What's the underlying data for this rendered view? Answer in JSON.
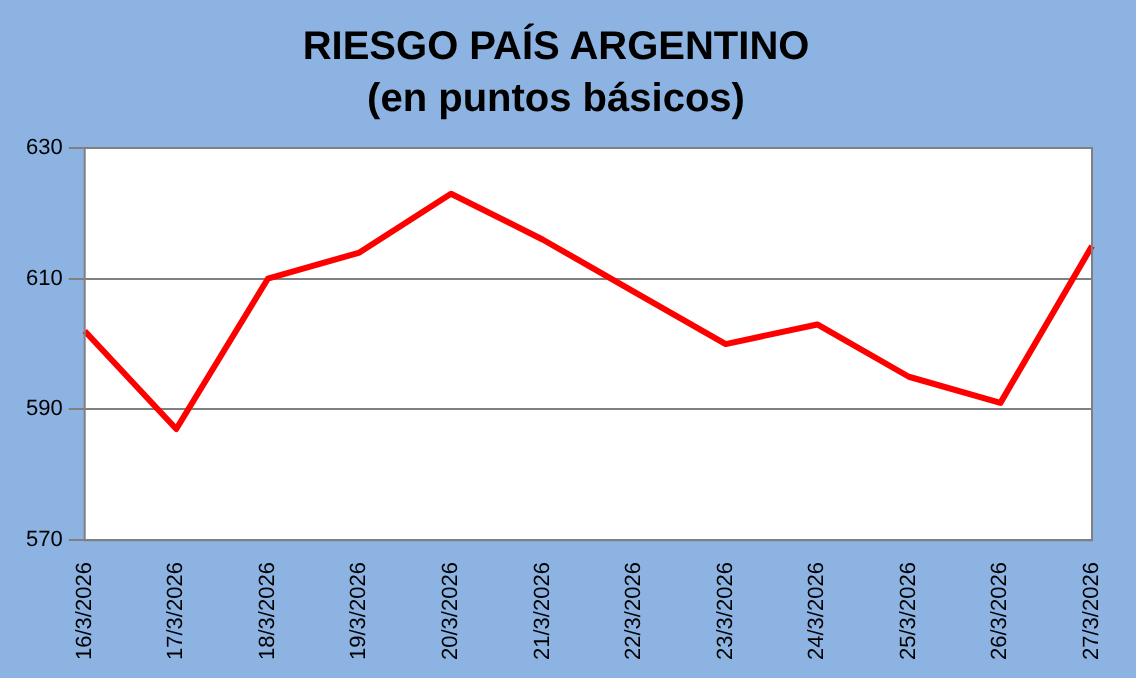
{
  "chart_data": {
    "type": "line",
    "title": "RIESGO PAÍS ARGENTINO",
    "subtitle": "(en puntos básicos)",
    "categories": [
      "16/3/2026",
      "17/3/2026",
      "18/3/2026",
      "19/3/2026",
      "20/3/2026",
      "21/3/2026",
      "22/3/2026",
      "23/3/2026",
      "24/3/2026",
      "25/3/2026",
      "26/3/2026",
      "27/3/2026"
    ],
    "series": [
      {
        "color": "#ff0000",
        "values": [
          602,
          587,
          610,
          614,
          623,
          616,
          608,
          600,
          603,
          595,
          591,
          615
        ]
      }
    ],
    "ylim": [
      570,
      630
    ],
    "yticks": [
      570,
      590,
      610,
      630
    ],
    "grid": "y",
    "legend": false,
    "marker": "none",
    "line_style": "solid"
  }
}
